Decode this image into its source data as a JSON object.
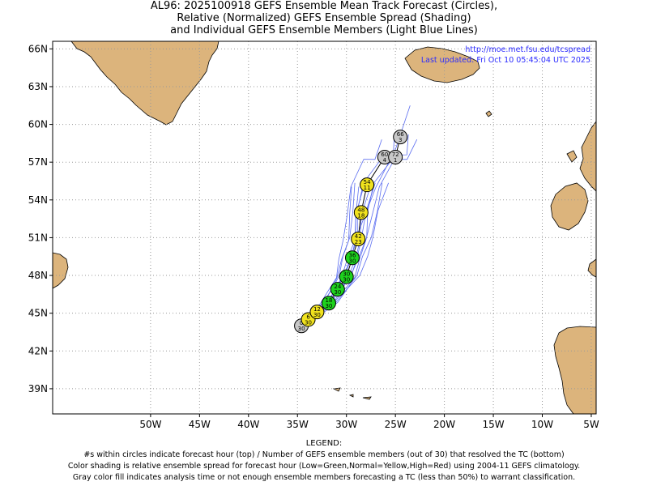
{
  "header": {
    "title_line1": "AL96: 2025100918 GEFS Ensemble Mean Track Forecast (Circles),",
    "title_line2": "Relative (Normalized) GEFS Ensemble Spread (Shading)",
    "title_line3": "and Individual GEFS Ensemble Members (Light Blue Lines)"
  },
  "credit": {
    "url": "http://moe.met.fsu.edu/tcspread",
    "updated": "Last updated: Fri Oct 10 05:45:04 UTC 2025"
  },
  "map": {
    "lon_range": [
      -60,
      -4.5
    ],
    "lat_range": [
      37,
      66.6
    ],
    "lat_ticks": [
      {
        "value": 66,
        "label": "66N"
      },
      {
        "value": 63,
        "label": "63N"
      },
      {
        "value": 60,
        "label": "60N"
      },
      {
        "value": 57,
        "label": "57N"
      },
      {
        "value": 54,
        "label": "54N"
      },
      {
        "value": 51,
        "label": "51N"
      },
      {
        "value": 48,
        "label": "48N"
      },
      {
        "value": 45,
        "label": "45N"
      },
      {
        "value": 42,
        "label": "42N"
      },
      {
        "value": 39,
        "label": "39N"
      }
    ],
    "lon_ticks": [
      {
        "value": -50,
        "label": "50W"
      },
      {
        "value": -45,
        "label": "45W"
      },
      {
        "value": -40,
        "label": "40W"
      },
      {
        "value": -35,
        "label": "35W"
      },
      {
        "value": -30,
        "label": "30W"
      },
      {
        "value": -25,
        "label": "25W"
      },
      {
        "value": -20,
        "label": "20W"
      },
      {
        "value": -15,
        "label": "15W"
      },
      {
        "value": -10,
        "label": "10W"
      },
      {
        "value": -5,
        "label": "5W"
      }
    ],
    "land_color": "#dcb47c",
    "grid": true
  },
  "track": {
    "colors": {
      "gray": "#c8c8c8",
      "yellow": "#f0e21e",
      "green": "#1ed21e"
    },
    "points": [
      {
        "hour": "0",
        "members": "30",
        "lon": -34.6,
        "lat": 44.0,
        "color": "gray"
      },
      {
        "hour": "6",
        "members": "30",
        "lon": -33.9,
        "lat": 44.5,
        "color": "yellow"
      },
      {
        "hour": "12",
        "members": "30",
        "lon": -33.0,
        "lat": 45.1,
        "color": "yellow"
      },
      {
        "hour": "18",
        "members": "30",
        "lon": -31.8,
        "lat": 45.8,
        "color": "green"
      },
      {
        "hour": "24",
        "members": "30",
        "lon": -30.9,
        "lat": 46.9,
        "color": "green"
      },
      {
        "hour": "30",
        "members": "30",
        "lon": -30.0,
        "lat": 47.9,
        "color": "green"
      },
      {
        "hour": "36",
        "members": "30",
        "lon": -29.4,
        "lat": 49.4,
        "color": "green"
      },
      {
        "hour": "42",
        "members": "23",
        "lon": -28.8,
        "lat": 50.9,
        "color": "yellow"
      },
      {
        "hour": "48",
        "members": "18",
        "lon": -28.5,
        "lat": 53.0,
        "color": "yellow"
      },
      {
        "hour": "54",
        "members": "11",
        "lon": -27.9,
        "lat": 55.2,
        "color": "yellow"
      },
      {
        "hour": "60",
        "members": "4",
        "lon": -26.1,
        "lat": 57.4,
        "color": "gray"
      },
      {
        "hour": "72",
        "members": "1",
        "lon": -25.0,
        "lat": 57.4,
        "color": "gray"
      },
      {
        "hour": "66",
        "members": "3",
        "lon": -24.5,
        "lat": 59.0,
        "color": "gray"
      }
    ]
  },
  "legend": {
    "heading": "LEGEND:",
    "line1": "#s within circles indicate forecast hour (top) / Number of GEFS ensemble members (out of 30) that resolved the TC (bottom)",
    "line2": "Color shading is relative ensemble spread for forecast hour (Low=Green,Normal=Yellow,High=Red) using 2004-11 GEFS climatology.",
    "line3": "Gray color fill indicates analysis time or not enough ensemble members forecasting a TC (less than 50%) to warrant classification."
  }
}
